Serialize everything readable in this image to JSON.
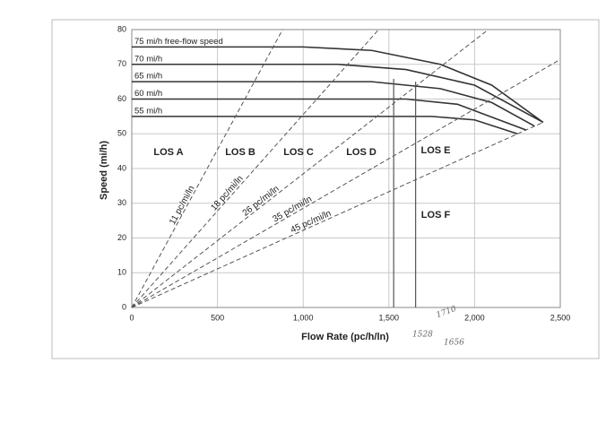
{
  "chart_data": {
    "type": "line",
    "x_label": "Flow Rate (pc/h/ln)",
    "y_label": "Speed (mi/h)",
    "xlim": [
      0,
      2500
    ],
    "ylim": [
      0,
      80
    ],
    "xticks": [
      0,
      500,
      {
        "value": 1000,
        "label": "1,000"
      },
      {
        "value": 1500,
        "label": "1,500"
      },
      {
        "value": 2000,
        "label": "2,000"
      },
      {
        "value": 2500,
        "label": "2,500"
      }
    ],
    "yticks": [
      0,
      10,
      20,
      30,
      40,
      50,
      60,
      70,
      80
    ],
    "grid": true,
    "series": [
      {
        "name": "75 mi/h free-flow speed",
        "color": "#333333",
        "style": "solid",
        "x": [
          0,
          1000,
          1400,
          1800,
          2100,
          2400
        ],
        "values": [
          75,
          75,
          74,
          70,
          64,
          53.3
        ]
      },
      {
        "name": "70 mi/h",
        "color": "#333333",
        "style": "solid",
        "x": [
          0,
          1200,
          1600,
          2000,
          2400
        ],
        "values": [
          70,
          70,
          68.5,
          64,
          53.3
        ]
      },
      {
        "name": "65 mi/h",
        "color": "#333333",
        "style": "solid",
        "x": [
          0,
          1400,
          1800,
          2100,
          2350
        ],
        "values": [
          65,
          65,
          63,
          59,
          52.2
        ]
      },
      {
        "name": "60 mi/h",
        "color": "#333333",
        "style": "solid",
        "x": [
          0,
          1600,
          1900,
          2300
        ],
        "values": [
          60,
          60,
          58.5,
          51.1
        ]
      },
      {
        "name": "55 mi/h",
        "color": "#333333",
        "style": "solid",
        "x": [
          0,
          1750,
          2000,
          2250
        ],
        "values": [
          55,
          55,
          54,
          50
        ]
      },
      {
        "name": "11 pc/mi/ln",
        "color": "#555555",
        "style": "dashed",
        "x": [
          0,
          880
        ],
        "values": [
          0,
          80
        ]
      },
      {
        "name": "18 pc/mi/ln",
        "color": "#555555",
        "style": "dashed",
        "x": [
          0,
          1440
        ],
        "values": [
          0,
          80
        ]
      },
      {
        "name": "26 pc/mi/ln",
        "color": "#555555",
        "style": "dashed",
        "x": [
          0,
          2080
        ],
        "values": [
          0,
          80
        ]
      },
      {
        "name": "35 pc/mi/ln",
        "color": "#555555",
        "style": "dashed",
        "x": [
          0,
          2500
        ],
        "values": [
          0,
          71.4
        ]
      },
      {
        "name": "45 pc/mi/ln",
        "color": "#555555",
        "style": "dashed",
        "x": [
          0,
          2400
        ],
        "values": [
          0,
          53.3
        ]
      }
    ],
    "annotations": [
      "LOS A",
      "LOS B",
      "LOS C",
      "LOS D",
      "LOS E",
      "LOS F"
    ],
    "vlines": [
      {
        "x": 1528,
        "top": 65.8
      },
      {
        "x": 1656,
        "top": 65
      }
    ],
    "handwritten_notes": [
      "1528",
      "1656",
      "1710"
    ]
  }
}
